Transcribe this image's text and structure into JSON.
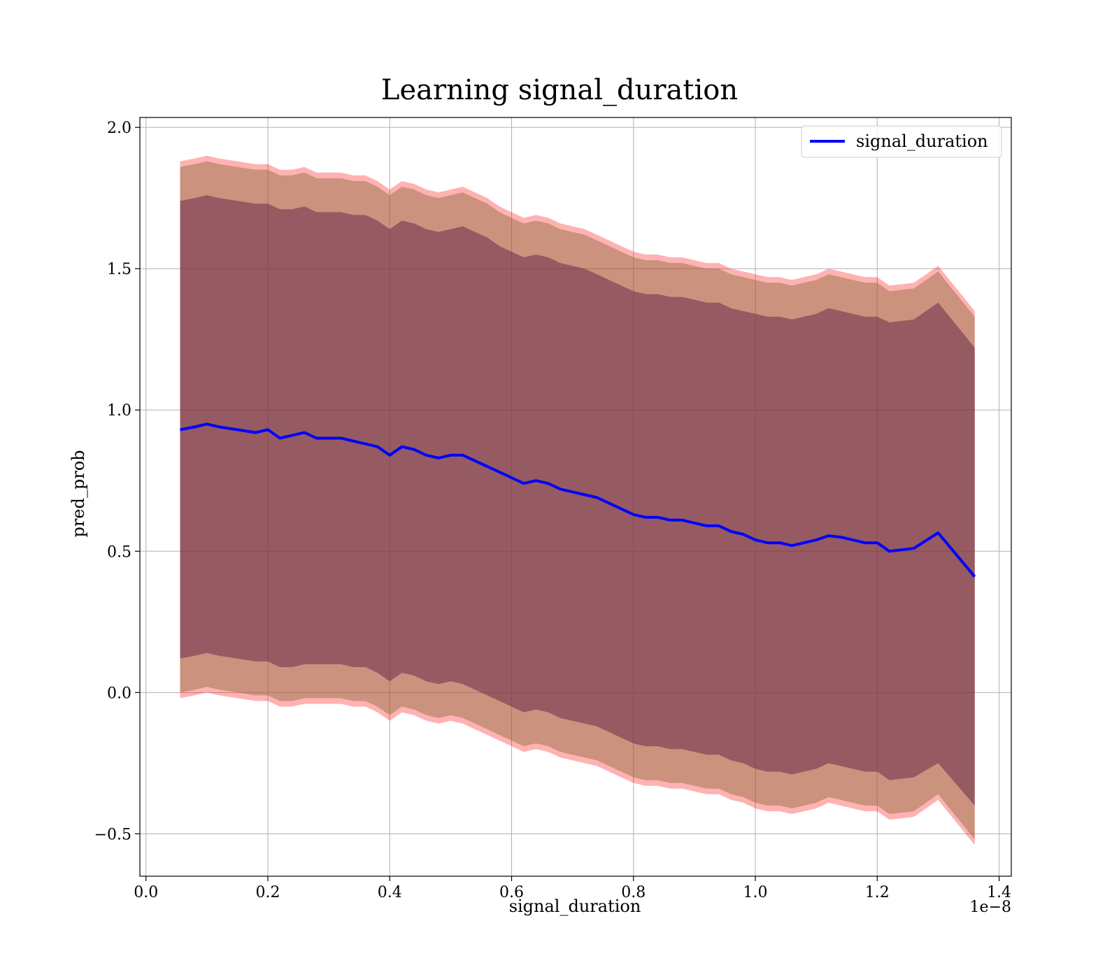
{
  "chart_data": {
    "type": "line",
    "title": "Learning signal_duration",
    "xlabel": "signal_duration",
    "ylabel": "pred_prob",
    "x_offset_label": "1e−8",
    "xlim": [
      -0.01,
      1.42
    ],
    "ylim": [
      -0.65,
      2.035
    ],
    "xticks": [
      0.0,
      0.2,
      0.4,
      0.6,
      0.8,
      1.0,
      1.2,
      1.4
    ],
    "xtick_labels": [
      "0.0",
      "0.2",
      "0.4",
      "0.6",
      "0.8",
      "1.0",
      "1.2",
      "1.4"
    ],
    "yticks": [
      -0.5,
      0.0,
      0.5,
      1.0,
      1.5,
      2.0
    ],
    "ytick_labels": [
      "−0.5",
      "0.0",
      "0.5",
      "1.0",
      "1.5",
      "2.0"
    ],
    "grid": true,
    "legend_position": "top-right",
    "series": [
      {
        "name": "signal_duration",
        "color": "#0000ff",
        "x": [
          0.056,
          0.08,
          0.1,
          0.12,
          0.15,
          0.18,
          0.2,
          0.22,
          0.24,
          0.26,
          0.28,
          0.3,
          0.32,
          0.34,
          0.36,
          0.38,
          0.4,
          0.42,
          0.44,
          0.46,
          0.48,
          0.5,
          0.52,
          0.54,
          0.56,
          0.58,
          0.6,
          0.62,
          0.64,
          0.66,
          0.68,
          0.7,
          0.72,
          0.74,
          0.76,
          0.78,
          0.8,
          0.82,
          0.84,
          0.86,
          0.88,
          0.9,
          0.92,
          0.94,
          0.96,
          0.98,
          1.0,
          1.02,
          1.04,
          1.06,
          1.08,
          1.1,
          1.12,
          1.14,
          1.18,
          1.2,
          1.22,
          1.26,
          1.3,
          1.36
        ],
        "y": [
          0.93,
          0.94,
          0.95,
          0.94,
          0.93,
          0.92,
          0.93,
          0.9,
          0.91,
          0.92,
          0.9,
          0.9,
          0.9,
          0.89,
          0.88,
          0.87,
          0.84,
          0.87,
          0.86,
          0.84,
          0.83,
          0.84,
          0.84,
          0.82,
          0.8,
          0.78,
          0.76,
          0.74,
          0.75,
          0.74,
          0.72,
          0.71,
          0.7,
          0.69,
          0.67,
          0.65,
          0.63,
          0.62,
          0.62,
          0.61,
          0.61,
          0.6,
          0.59,
          0.59,
          0.57,
          0.56,
          0.54,
          0.53,
          0.53,
          0.52,
          0.53,
          0.54,
          0.555,
          0.55,
          0.53,
          0.53,
          0.5,
          0.51,
          0.565,
          0.41
        ]
      }
    ],
    "bands": [
      {
        "fill": "#ff0000",
        "opacity": 0.3,
        "upper": [
          1.88,
          1.89,
          1.9,
          1.89,
          1.88,
          1.87,
          1.87,
          1.85,
          1.85,
          1.86,
          1.84,
          1.84,
          1.84,
          1.83,
          1.83,
          1.81,
          1.78,
          1.81,
          1.8,
          1.78,
          1.77,
          1.78,
          1.79,
          1.77,
          1.75,
          1.72,
          1.7,
          1.68,
          1.69,
          1.68,
          1.66,
          1.65,
          1.64,
          1.62,
          1.6,
          1.58,
          1.56,
          1.55,
          1.55,
          1.54,
          1.54,
          1.53,
          1.52,
          1.52,
          1.5,
          1.49,
          1.48,
          1.47,
          1.47,
          1.46,
          1.47,
          1.48,
          1.5,
          1.49,
          1.47,
          1.47,
          1.44,
          1.45,
          1.51,
          1.35
        ],
        "lower": [
          -0.02,
          -0.01,
          0.0,
          -0.01,
          -0.02,
          -0.03,
          -0.03,
          -0.05,
          -0.05,
          -0.04,
          -0.04,
          -0.04,
          -0.04,
          -0.05,
          -0.05,
          -0.07,
          -0.1,
          -0.07,
          -0.08,
          -0.1,
          -0.11,
          -0.1,
          -0.11,
          -0.13,
          -0.15,
          -0.17,
          -0.19,
          -0.21,
          -0.2,
          -0.21,
          -0.23,
          -0.24,
          -0.25,
          -0.26,
          -0.28,
          -0.3,
          -0.32,
          -0.33,
          -0.33,
          -0.34,
          -0.34,
          -0.35,
          -0.36,
          -0.36,
          -0.38,
          -0.39,
          -0.41,
          -0.42,
          -0.42,
          -0.43,
          -0.42,
          -0.41,
          -0.39,
          -0.4,
          -0.42,
          -0.42,
          -0.45,
          -0.44,
          -0.38,
          -0.54
        ]
      },
      {
        "fill": "#8b6a3e",
        "opacity": 0.45,
        "upper": [
          1.86,
          1.87,
          1.88,
          1.87,
          1.86,
          1.85,
          1.85,
          1.83,
          1.83,
          1.84,
          1.82,
          1.82,
          1.82,
          1.81,
          1.81,
          1.79,
          1.76,
          1.79,
          1.78,
          1.76,
          1.75,
          1.76,
          1.77,
          1.75,
          1.73,
          1.7,
          1.68,
          1.66,
          1.67,
          1.66,
          1.64,
          1.63,
          1.62,
          1.6,
          1.58,
          1.56,
          1.54,
          1.53,
          1.53,
          1.52,
          1.52,
          1.51,
          1.5,
          1.5,
          1.48,
          1.47,
          1.46,
          1.45,
          1.45,
          1.44,
          1.45,
          1.46,
          1.48,
          1.47,
          1.45,
          1.45,
          1.42,
          1.43,
          1.49,
          1.33
        ],
        "lower": [
          0.0,
          0.01,
          0.02,
          0.01,
          0.0,
          -0.01,
          -0.01,
          -0.03,
          -0.03,
          -0.02,
          -0.02,
          -0.02,
          -0.02,
          -0.03,
          -0.03,
          -0.05,
          -0.08,
          -0.05,
          -0.06,
          -0.08,
          -0.09,
          -0.08,
          -0.09,
          -0.11,
          -0.13,
          -0.15,
          -0.17,
          -0.19,
          -0.18,
          -0.19,
          -0.21,
          -0.22,
          -0.23,
          -0.24,
          -0.26,
          -0.28,
          -0.3,
          -0.31,
          -0.31,
          -0.32,
          -0.32,
          -0.33,
          -0.34,
          -0.34,
          -0.36,
          -0.37,
          -0.39,
          -0.4,
          -0.4,
          -0.41,
          -0.4,
          -0.39,
          -0.37,
          -0.38,
          -0.4,
          -0.4,
          -0.43,
          -0.42,
          -0.36,
          -0.52
        ]
      },
      {
        "fill": "#6b2b4a",
        "opacity": 0.55,
        "upper": [
          1.74,
          1.75,
          1.76,
          1.75,
          1.74,
          1.73,
          1.73,
          1.71,
          1.71,
          1.72,
          1.7,
          1.7,
          1.7,
          1.69,
          1.69,
          1.67,
          1.64,
          1.67,
          1.66,
          1.64,
          1.63,
          1.64,
          1.65,
          1.63,
          1.61,
          1.58,
          1.56,
          1.54,
          1.55,
          1.54,
          1.52,
          1.51,
          1.5,
          1.48,
          1.46,
          1.44,
          1.42,
          1.41,
          1.41,
          1.4,
          1.4,
          1.39,
          1.38,
          1.38,
          1.36,
          1.35,
          1.34,
          1.33,
          1.33,
          1.32,
          1.33,
          1.34,
          1.36,
          1.35,
          1.33,
          1.33,
          1.31,
          1.32,
          1.38,
          1.22
        ],
        "lower": [
          0.12,
          0.13,
          0.14,
          0.13,
          0.12,
          0.11,
          0.11,
          0.09,
          0.09,
          0.1,
          0.1,
          0.1,
          0.1,
          0.09,
          0.09,
          0.07,
          0.04,
          0.07,
          0.06,
          0.04,
          0.03,
          0.04,
          0.03,
          0.01,
          -0.01,
          -0.03,
          -0.05,
          -0.07,
          -0.06,
          -0.07,
          -0.09,
          -0.1,
          -0.11,
          -0.12,
          -0.14,
          -0.16,
          -0.18,
          -0.19,
          -0.19,
          -0.2,
          -0.2,
          -0.21,
          -0.22,
          -0.22,
          -0.24,
          -0.25,
          -0.27,
          -0.28,
          -0.28,
          -0.29,
          -0.28,
          -0.27,
          -0.25,
          -0.26,
          -0.28,
          -0.28,
          -0.31,
          -0.3,
          -0.25,
          -0.4
        ]
      }
    ]
  }
}
